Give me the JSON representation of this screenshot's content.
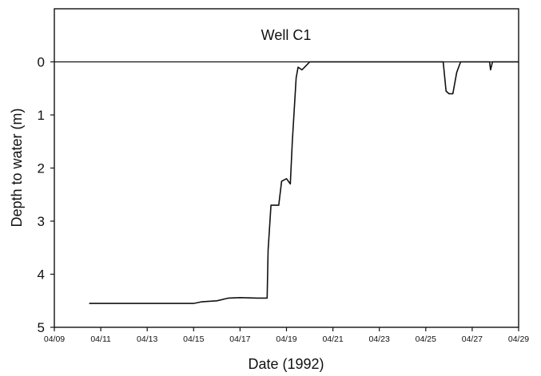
{
  "chart_data": {
    "type": "line",
    "title": "Well C1",
    "xlabel": "Date (1992)",
    "ylabel": "Depth to water (m)",
    "x_tick_labels": [
      "04/09",
      "04/11",
      "04/13",
      "04/15",
      "04/17",
      "04/19",
      "04/21",
      "04/23",
      "04/25",
      "04/27",
      "04/29"
    ],
    "y_tick_labels": [
      "0",
      "1",
      "2",
      "3",
      "4",
      "5"
    ],
    "xlim": [
      "1992-04-09",
      "1992-04-29"
    ],
    "ylim": [
      -1,
      5
    ],
    "y_inverted": true,
    "grid": false,
    "series": [
      {
        "values": [
          [
            "1992-04-10 12:00",
            4.55
          ],
          [
            "1992-04-13 00:00",
            4.55
          ],
          [
            "1992-04-15 00:00",
            4.55
          ],
          [
            "1992-04-15 08:00",
            4.52
          ],
          [
            "1992-04-16 00:00",
            4.5
          ],
          [
            "1992-04-16 12:00",
            4.45
          ],
          [
            "1992-04-17 00:00",
            4.44
          ],
          [
            "1992-04-17 18:00",
            4.45
          ],
          [
            "1992-04-18 04:00",
            4.45
          ],
          [
            "1992-04-18 05:00",
            3.55
          ],
          [
            "1992-04-18 08:00",
            2.7
          ],
          [
            "1992-04-18 16:00",
            2.7
          ],
          [
            "1992-04-18 19:00",
            2.25
          ],
          [
            "1992-04-19 00:00",
            2.2
          ],
          [
            "1992-04-19 04:00",
            2.3
          ],
          [
            "1992-04-19 06:00",
            1.5
          ],
          [
            "1992-04-19 10:00",
            0.3
          ],
          [
            "1992-04-19 12:00",
            0.1
          ],
          [
            "1992-04-19 16:00",
            0.15
          ],
          [
            "1992-04-20 00:00",
            0.0
          ],
          [
            "1992-04-25 18:00",
            0.0
          ],
          [
            "1992-04-25 21:00",
            0.55
          ],
          [
            "1992-04-26 00:00",
            0.6
          ],
          [
            "1992-04-26 04:00",
            0.6
          ],
          [
            "1992-04-26 08:00",
            0.2
          ],
          [
            "1992-04-26 12:00",
            0.0
          ],
          [
            "1992-04-27 18:00",
            0.0
          ],
          [
            "1992-04-27 19:00",
            0.15
          ],
          [
            "1992-04-27 21:00",
            0.0
          ],
          [
            "1992-04-29 00:00",
            0.0
          ]
        ]
      }
    ]
  }
}
